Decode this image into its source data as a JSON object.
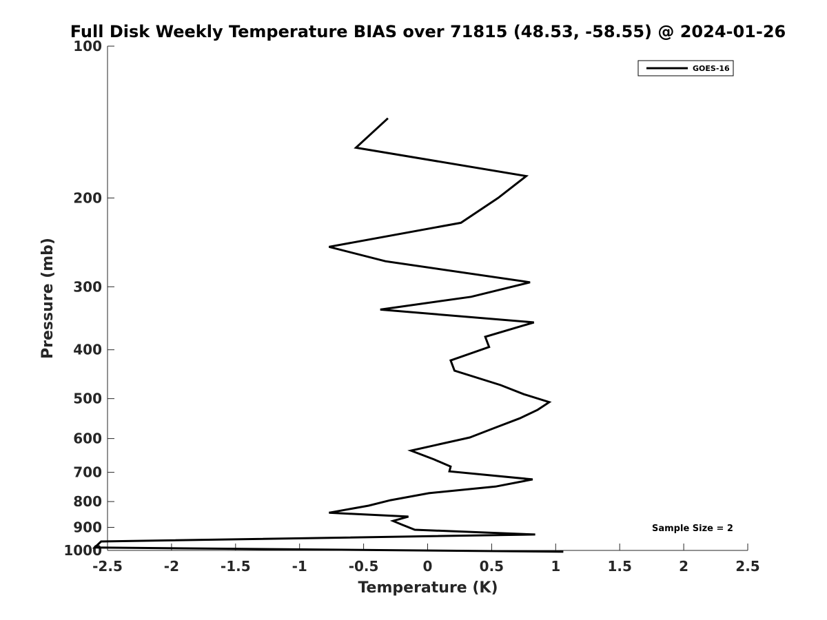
{
  "chart_data": {
    "type": "line",
    "title": "Full Disk Weekly Temperature BIAS over 71815 (48.53, -58.55) @ 2024-01-26",
    "xlabel": "Temperature (K)",
    "ylabel": "Pressure (mb)",
    "xlim": [
      -2.5,
      2.5
    ],
    "ylim": [
      100,
      1000
    ],
    "yscale": "log",
    "yreversed": true,
    "xticks": [
      -2.5,
      -2,
      -1.5,
      -1,
      -0.5,
      0,
      0.5,
      1,
      1.5,
      2,
      2.5
    ],
    "xtick_labels": [
      "-2.5",
      "-2",
      "-1.5",
      "-1",
      "-0.5",
      "0",
      "0.5",
      "1",
      "1.5",
      "2",
      "2.5"
    ],
    "yticks": [
      100,
      200,
      300,
      400,
      500,
      600,
      700,
      800,
      900,
      1000
    ],
    "ytick_labels": [
      "100",
      "200",
      "300",
      "400",
      "500",
      "600",
      "700",
      "800",
      "900",
      "1000"
    ],
    "grid": false,
    "legend": {
      "position": "top-right",
      "entries": [
        "GOES-16"
      ]
    },
    "annotation": "Sample Size = 2",
    "series": [
      {
        "name": "GOES-16",
        "color": "#000000",
        "x": [
          -0.31,
          -0.56,
          0.77,
          0.55,
          0.26,
          -0.77,
          -0.33,
          0.8,
          0.34,
          -0.37,
          0.83,
          0.45,
          0.48,
          0.18,
          0.21,
          0.57,
          0.75,
          0.95,
          0.86,
          0.72,
          0.52,
          0.33,
          -0.13,
          0.05,
          0.18,
          0.17,
          0.82,
          0.53,
          0.01,
          -0.29,
          -0.46,
          -0.77,
          -0.15,
          -0.27,
          -0.2,
          -0.1,
          0.84,
          -2.55,
          -2.6,
          1.06
        ],
        "y": [
          139,
          159,
          181,
          200,
          224,
          250,
          267,
          294,
          314,
          333,
          353,
          377,
          395,
          420,
          440,
          470,
          490,
          508,
          526,
          547,
          572,
          597,
          634,
          660,
          682,
          697,
          723,
          747,
          770,
          795,
          815,
          842,
          857,
          874,
          889,
          910,
          930,
          960,
          987,
          1006
        ]
      }
    ]
  }
}
